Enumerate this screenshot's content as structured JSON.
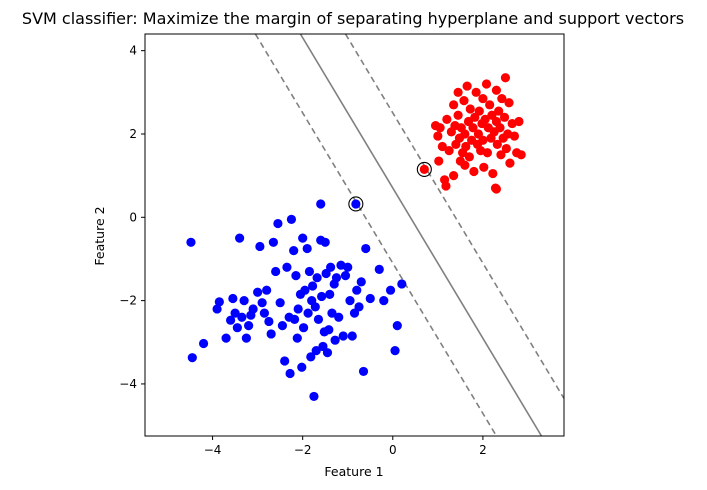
{
  "chart_data": {
    "type": "scatter",
    "title": "SVM classifier: Maximize the margin of separating hyperplane and support vectors",
    "xlabel": "Feature 1",
    "ylabel": "Feature 2",
    "xlim": [
      -5.5,
      3.8
    ],
    "ylim": [
      -5.25,
      4.4
    ],
    "xticks": [
      -4,
      -2,
      0,
      2
    ],
    "yticks": [
      -4,
      -2,
      0,
      2,
      4
    ],
    "xtick_labels": [
      "−4",
      "−2",
      "0",
      "2"
    ],
    "ytick_labels": [
      "−4",
      "−2",
      "0",
      "2",
      "4"
    ],
    "grid": false,
    "decision_boundary": {
      "line_color": "#808080",
      "center_line": {
        "style": "solid",
        "points": [
          [
            -2.05,
            4.4
          ],
          [
            3.3,
            -5.25
          ]
        ]
      },
      "margin_lower": {
        "style": "dashed",
        "points": [
          [
            -3.05,
            4.4
          ],
          [
            2.3,
            -5.25
          ]
        ]
      },
      "margin_upper": {
        "style": "dashed",
        "points": [
          [
            -1.05,
            4.4
          ],
          [
            3.8,
            -4.35
          ]
        ]
      }
    },
    "support_vectors": [
      [
        -0.82,
        0.32
      ],
      [
        0.7,
        1.15
      ]
    ],
    "series": [
      {
        "color": "#0000ff",
        "points": [
          [
            -4.48,
            -0.6
          ],
          [
            -4.45,
            -3.37
          ],
          [
            -4.2,
            -3.03
          ],
          [
            -3.9,
            -2.2
          ],
          [
            -3.85,
            -2.03
          ],
          [
            -3.7,
            -2.9
          ],
          [
            -3.6,
            -2.47
          ],
          [
            -3.55,
            -1.95
          ],
          [
            -3.5,
            -2.3
          ],
          [
            -3.45,
            -2.65
          ],
          [
            -3.4,
            -0.5
          ],
          [
            -3.3,
            -2.0
          ],
          [
            -3.25,
            -2.9
          ],
          [
            -3.2,
            -2.6
          ],
          [
            -3.15,
            -2.35
          ],
          [
            -3.1,
            -2.2
          ],
          [
            -3.0,
            -1.8
          ],
          [
            -2.95,
            -0.7
          ],
          [
            -2.9,
            -2.05
          ],
          [
            -2.85,
            -2.3
          ],
          [
            -2.8,
            -1.75
          ],
          [
            -2.75,
            -2.5
          ],
          [
            -2.7,
            -2.8
          ],
          [
            -2.65,
            -0.6
          ],
          [
            -2.6,
            -1.3
          ],
          [
            -2.55,
            -0.15
          ],
          [
            -2.5,
            -2.05
          ],
          [
            -2.45,
            -2.6
          ],
          [
            -2.4,
            -3.45
          ],
          [
            -2.35,
            -1.2
          ],
          [
            -2.3,
            -2.4
          ],
          [
            -2.28,
            -3.75
          ],
          [
            -2.25,
            -0.05
          ],
          [
            -2.2,
            -0.8
          ],
          [
            -2.18,
            -2.45
          ],
          [
            -2.15,
            -1.4
          ],
          [
            -2.12,
            -2.9
          ],
          [
            -2.1,
            -2.2
          ],
          [
            -2.05,
            -1.85
          ],
          [
            -2.02,
            -3.6
          ],
          [
            -2.0,
            -0.5
          ],
          [
            -1.98,
            -2.65
          ],
          [
            -1.95,
            -1.75
          ],
          [
            -1.9,
            -0.75
          ],
          [
            -1.88,
            -2.3
          ],
          [
            -1.85,
            -1.3
          ],
          [
            -1.82,
            -3.35
          ],
          [
            -1.8,
            -2.0
          ],
          [
            -1.78,
            -1.65
          ],
          [
            -1.75,
            -4.3
          ],
          [
            -1.72,
            -2.15
          ],
          [
            -1.7,
            -3.2
          ],
          [
            -1.68,
            -1.45
          ],
          [
            -1.65,
            -2.45
          ],
          [
            -1.6,
            -0.55
          ],
          [
            -1.58,
            -1.9
          ],
          [
            -1.55,
            -3.1
          ],
          [
            -1.52,
            -2.75
          ],
          [
            -1.5,
            -0.6
          ],
          [
            -1.48,
            -1.35
          ],
          [
            -1.45,
            -3.25
          ],
          [
            -1.42,
            -2.7
          ],
          [
            -1.4,
            -1.85
          ],
          [
            -1.38,
            -1.2
          ],
          [
            -1.35,
            -2.3
          ],
          [
            -1.3,
            -1.6
          ],
          [
            -1.28,
            -2.95
          ],
          [
            -1.25,
            -1.45
          ],
          [
            -1.2,
            -2.4
          ],
          [
            -1.15,
            -1.15
          ],
          [
            -1.1,
            -2.85
          ],
          [
            -1.05,
            -1.4
          ],
          [
            -1.0,
            -1.2
          ],
          [
            -0.95,
            -2.0
          ],
          [
            -0.9,
            -2.85
          ],
          [
            -0.85,
            -2.3
          ],
          [
            -0.8,
            -1.75
          ],
          [
            -0.75,
            -2.15
          ],
          [
            -0.7,
            -1.55
          ],
          [
            -0.65,
            -3.7
          ],
          [
            -0.6,
            -0.75
          ],
          [
            -0.5,
            -1.95
          ],
          [
            -0.3,
            -1.25
          ],
          [
            -0.2,
            -2.0
          ],
          [
            -0.05,
            -1.75
          ],
          [
            0.05,
            -3.2
          ],
          [
            0.1,
            -2.6
          ],
          [
            0.2,
            -1.6
          ],
          [
            -1.6,
            0.32
          ],
          [
            -3.35,
            -2.4
          ],
          [
            -0.82,
            0.32
          ]
        ]
      },
      {
        "color": "#ff0000",
        "points": [
          [
            0.7,
            1.15
          ],
          [
            0.95,
            2.2
          ],
          [
            1.0,
            1.95
          ],
          [
            1.02,
            1.35
          ],
          [
            1.05,
            2.15
          ],
          [
            1.1,
            1.7
          ],
          [
            1.15,
            0.9
          ],
          [
            1.18,
            0.75
          ],
          [
            1.2,
            2.35
          ],
          [
            1.25,
            1.6
          ],
          [
            1.3,
            2.05
          ],
          [
            1.35,
            2.7
          ],
          [
            1.35,
            1.0
          ],
          [
            1.38,
            2.2
          ],
          [
            1.4,
            1.75
          ],
          [
            1.45,
            2.45
          ],
          [
            1.45,
            3.0
          ],
          [
            1.48,
            1.9
          ],
          [
            1.5,
            1.35
          ],
          [
            1.52,
            2.15
          ],
          [
            1.55,
            1.55
          ],
          [
            1.58,
            2.8
          ],
          [
            1.6,
            2.0
          ],
          [
            1.62,
            1.7
          ],
          [
            1.65,
            3.15
          ],
          [
            1.68,
            2.3
          ],
          [
            1.7,
            1.45
          ],
          [
            1.72,
            2.6
          ],
          [
            1.75,
            1.85
          ],
          [
            1.78,
            2.15
          ],
          [
            1.8,
            1.1
          ],
          [
            1.82,
            2.4
          ],
          [
            1.85,
            3.0
          ],
          [
            1.88,
            1.75
          ],
          [
            1.9,
            2.0
          ],
          [
            1.92,
            2.55
          ],
          [
            1.95,
            1.6
          ],
          [
            1.98,
            2.25
          ],
          [
            2.0,
            2.85
          ],
          [
            2.0,
            1.85
          ],
          [
            2.02,
            1.2
          ],
          [
            2.05,
            2.35
          ],
          [
            2.08,
            3.2
          ],
          [
            2.1,
            1.55
          ],
          [
            2.12,
            2.15
          ],
          [
            2.15,
            2.7
          ],
          [
            2.18,
            1.9
          ],
          [
            2.2,
            2.45
          ],
          [
            2.22,
            1.05
          ],
          [
            2.25,
            2.05
          ],
          [
            2.28,
            0.7
          ],
          [
            2.3,
            2.3
          ],
          [
            2.3,
            3.05
          ],
          [
            2.32,
            1.75
          ],
          [
            2.35,
            2.55
          ],
          [
            2.38,
            2.15
          ],
          [
            2.4,
            1.5
          ],
          [
            2.42,
            2.85
          ],
          [
            2.45,
            1.9
          ],
          [
            2.48,
            2.4
          ],
          [
            2.5,
            3.35
          ],
          [
            2.52,
            1.65
          ],
          [
            2.55,
            2.0
          ],
          [
            2.58,
            2.75
          ],
          [
            2.6,
            1.3
          ],
          [
            2.65,
            2.25
          ],
          [
            2.7,
            1.95
          ],
          [
            2.75,
            1.55
          ],
          [
            2.8,
            2.3
          ],
          [
            2.85,
            1.5
          ],
          [
            2.3,
            0.68
          ],
          [
            1.6,
            1.25
          ]
        ]
      }
    ]
  }
}
